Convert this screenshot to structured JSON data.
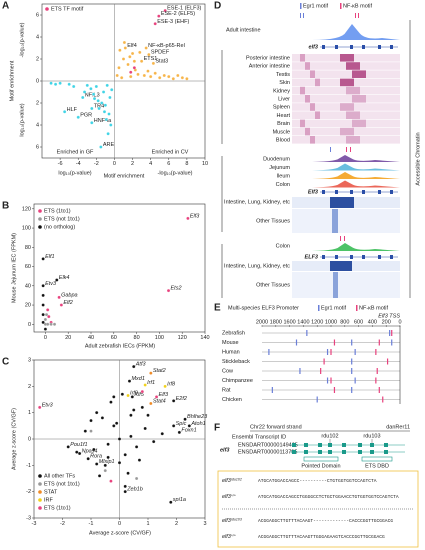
{
  "panel_a": {
    "letter": "A",
    "type": "scatter",
    "legend_title": "ETS TF motif",
    "axes_at_zero": true,
    "xlim": [
      -8,
      10
    ],
    "xticks": [
      -6,
      -4,
      -2,
      0,
      2,
      4,
      6,
      8,
      10
    ],
    "ylim": [
      -7,
      7
    ],
    "yticks": [
      {
        "value": -6,
        "label": "6"
      },
      {
        "value": -4,
        "label": "4"
      },
      {
        "value": -2,
        "label": "2"
      },
      0,
      2,
      4,
      6
    ],
    "y_labels": [
      "Motif enrichment",
      "-log₁₀(p-value)",
      "log₁₀(p-value)"
    ],
    "x_labels": [
      "log₁₀(p-value)",
      "Motif enrichment",
      "-log₁₀(p-value)"
    ],
    "side_labels": [
      "Enriched in GF",
      "Enriched in CV"
    ],
    "series": [
      {
        "color": "#f7b54a",
        "x": [
          1.2,
          3.5,
          3.8,
          3.0,
          4.3,
          0.3,
          0.5,
          0.8,
          1,
          1.5,
          1.8,
          2,
          2.3,
          2.6,
          3.3,
          3.7,
          4,
          4.5,
          5,
          5.5,
          6,
          6.5,
          7,
          7.5,
          8,
          0.6,
          1.1,
          1.7,
          2.2,
          2.8
        ],
        "y": [
          3.0,
          3.0,
          2.4,
          1.8,
          1.6,
          0.5,
          1.2,
          0.3,
          2,
          1.5,
          0.4,
          2.5,
          1,
          0.6,
          0.5,
          0.9,
          0.4,
          0.7,
          0.3,
          0.5,
          0.4,
          0.2,
          0.5,
          0.3,
          0.2,
          2.8,
          3.5,
          2.2,
          1.8,
          2.6
        ],
        "labels": [
          "Elf4",
          "NF-κB-p65-Rel",
          "SPDEF",
          "ETS1",
          "Stat3",
          null,
          null,
          null,
          null,
          null,
          null,
          null,
          null,
          null,
          null,
          null,
          null,
          null,
          null,
          null,
          null,
          null,
          null,
          null,
          null,
          null,
          null,
          null,
          null,
          null
        ]
      },
      {
        "color": "#40d4e6",
        "x": [
          -3.5,
          -2.5,
          -5.5,
          -4,
          -2.5,
          -1.5,
          -0.3,
          -0.5,
          -0.8,
          -1,
          -1.2,
          -1.8,
          -2,
          -2.3,
          -2.6,
          -3,
          -3.3,
          -4.5,
          -5,
          -6,
          -6.5,
          -7,
          -0.6,
          -1.1,
          -1.7,
          -2.2,
          -0.4,
          -0.9,
          -1.4,
          -0.7
        ],
        "y": [
          -1.5,
          -2.5,
          -2.8,
          -3.3,
          -3.8,
          -6,
          -0.8,
          -1.5,
          -0.4,
          -2.2,
          -1,
          -1.8,
          -0.5,
          -1.2,
          -0.7,
          -0.4,
          -1,
          -0.5,
          -0.3,
          -0.2,
          -0.3,
          -0.2,
          -3,
          -2.8,
          -2.5,
          -1.6,
          -4,
          -3.5,
          -2,
          -4.8
        ],
        "labels": [
          "NFIL3",
          "TR4",
          "HLF",
          "PGR",
          "HNF4a",
          "ARE",
          null,
          null,
          null,
          null,
          null,
          null,
          null,
          null,
          null,
          null,
          null,
          null,
          null,
          null,
          null,
          null,
          null,
          null,
          null,
          null,
          null,
          null,
          null,
          null
        ]
      },
      {
        "color": "#e8417d",
        "x": [
          5.6,
          4.9,
          4.5,
          2.2,
          1.8
        ],
        "y": [
          6.4,
          5.9,
          5.2,
          1.2,
          0.8
        ],
        "labels": [
          "ESE-1 (ELF3)",
          "ESE-2 (ELF5)",
          "ESE-3 (EHF)",
          null,
          null
        ]
      }
    ]
  },
  "panel_b": {
    "letter": "B",
    "type": "scatter",
    "xlim": [
      -10,
      140
    ],
    "xticks": [
      0,
      20,
      40,
      60,
      80,
      100,
      120,
      140
    ],
    "ylim": [
      -8,
      125
    ],
    "yticks": [
      0,
      20,
      40,
      60,
      80,
      100,
      120
    ],
    "x_label": "Adult zebrafish IECs (FPKM)",
    "y_label": "Mouse Jejunum IEC (FPKM)",
    "series": [
      {
        "name": "ETS (1to1)",
        "color": "#e8417d",
        "x": [
          125,
          108,
          12,
          14,
          2,
          3,
          5
        ],
        "y": [
          110,
          35,
          28,
          20,
          15,
          8,
          2
        ],
        "labels": [
          "Elf3",
          "Ets2",
          "Gabpa",
          "Elf2",
          null,
          null,
          null
        ]
      },
      {
        "name": "ETS (not 1to1)",
        "color": "#999999",
        "x": [
          0,
          2,
          5,
          8,
          0,
          1
        ],
        "y": [
          0,
          0,
          0,
          0,
          5,
          10
        ],
        "labels": [
          null,
          null,
          null,
          null,
          null,
          null
        ]
      },
      {
        "name": "(no ortholog)",
        "color": "#111111",
        "x": [
          -2,
          -2,
          10,
          -2,
          -2,
          -2,
          -2,
          0
        ],
        "y": [
          68,
          40,
          46,
          30,
          20,
          10,
          2,
          -5
        ],
        "labels": [
          "Elf1",
          "Etv3",
          "Elk4",
          null,
          null,
          null,
          null,
          null
        ]
      }
    ]
  },
  "panel_c": {
    "letter": "C",
    "type": "scatter",
    "axes_at_zero": true,
    "xlim": [
      -3,
      3
    ],
    "xticks": [
      -3,
      -2,
      -1,
      0,
      1,
      2,
      3
    ],
    "ylim": [
      -3,
      3
    ],
    "yticks": [
      -3,
      -2,
      -1,
      0,
      1,
      2,
      3
    ],
    "x_label": "Average z-score (CV/GF)",
    "y_label": "Average z-score (CV/GF)",
    "series": [
      {
        "name": "All other TFs",
        "color": "#111111",
        "x": [
          0.5,
          0.35,
          0.45,
          1.9,
          2.3,
          2.45,
          1.9,
          2.1,
          -1.8,
          -1.4,
          -1.1,
          -0.8,
          0.2,
          1.8,
          -1.2,
          -0.9,
          -0.6,
          -0.4,
          -0.2,
          0,
          0.2,
          0.4,
          0.6,
          0.9,
          1.2,
          -0.5,
          0.5,
          -0.3,
          0.3,
          -0.8,
          0.8,
          0,
          -1.5,
          1.5,
          -0.7,
          0.7,
          0.1,
          -0.1,
          0.4,
          -0.4,
          1,
          -1,
          0.2,
          -0.2
        ],
        "y": [
          2.75,
          2.2,
          1.6,
          1.45,
          0.75,
          0.5,
          0.5,
          0.25,
          -0.3,
          -0.55,
          -0.75,
          -0.95,
          -2.0,
          -2.4,
          0.3,
          -0.4,
          0.8,
          -0.2,
          0.5,
          0,
          -0.6,
          0.9,
          -0.3,
          0.4,
          -0.1,
          -1,
          1.1,
          1.4,
          -1.3,
          1.0,
          1.2,
          -0.9,
          -0.5,
          0.2,
          -1.4,
          -0.8,
          1.7,
          0.6,
          0.1,
          -0.7,
          0.9,
          0.7,
          -1.8,
          1.6
        ],
        "labels": [
          "Atf3",
          "Mxd1",
          "Klf5",
          "E2f2",
          "Bhlhe23",
          "Atoh1",
          "Spic",
          "Foxn1",
          "Pou1f1",
          "Npas4",
          "Rora",
          "Mlxip1",
          "Zeb1b",
          "spi1a",
          null,
          null,
          null,
          null,
          null,
          null,
          null,
          null,
          null,
          null,
          null,
          null,
          null,
          null,
          null,
          null,
          null,
          null,
          null,
          null,
          null,
          null,
          null,
          null,
          null,
          null,
          null,
          null,
          null,
          null
        ]
      },
      {
        "name": "ETS (not 1to1)",
        "color": "#999999",
        "x": [
          -0.5,
          0.6,
          -1
        ],
        "y": [
          -1.2,
          -1.5,
          0.3
        ],
        "labels": [
          null,
          null,
          null
        ]
      },
      {
        "name": "STAT",
        "color": "#f08a24",
        "x": [
          1.1,
          1.1
        ],
        "y": [
          2.5,
          1.35
        ],
        "labels": [
          "Stat2",
          "Stat4"
        ]
      },
      {
        "name": "IRF",
        "color": "#f2d21b",
        "x": [
          0.9,
          1.6,
          0.3
        ],
        "y": [
          2.05,
          2.0,
          1.65
        ],
        "labels": [
          "Irf1",
          "Irf8",
          "Irf9"
        ]
      },
      {
        "name": "ETS (1to1)",
        "color": "#e8417d",
        "x": [
          1.3,
          -2.8,
          0.8,
          -0.3
        ],
        "y": [
          1.6,
          1.2,
          1.8,
          -1.6
        ],
        "labels": [
          "Elf3",
          "Etv3",
          null,
          null
        ]
      }
    ]
  },
  "panel_d": {
    "letter": "D",
    "legend": [
      "Egr1 motif",
      "NF-κB motif"
    ],
    "zebrafish_track": "Adult intestine",
    "zebrafish_gene": "elf3",
    "tissues": [
      "Posterior intestine",
      "Anterior intestine",
      "Testis",
      "Skin",
      "Kidney",
      "Liver",
      "Spleen",
      "Heart",
      "Brain",
      "Muscle",
      "Blood"
    ],
    "mouse_tracks": [
      "Duodenum",
      "Jejunum",
      "Ileum",
      "Colon"
    ],
    "mouse_gene": "Elf3",
    "mouse_groups": [
      "Intestine, Lung, Kidney, etc",
      "Other Tissues"
    ],
    "human_track": "Colon",
    "human_gene": "ELF3",
    "human_groups": [
      "Intestine, Lung, Kidney, etc",
      "Other Tissues"
    ],
    "side_label": "Accessible Chromatin"
  },
  "panel_e": {
    "letter": "E",
    "title": "Multi-species ELF3 Promoter",
    "legend": [
      "Egr1 motif",
      "NF-κB motif"
    ],
    "tss_label": "Elf3 TSS",
    "xlim": [
      2000,
      0
    ],
    "xticks": [
      2000,
      1800,
      1600,
      1400,
      1200,
      1000,
      800,
      600,
      400,
      200,
      0
    ],
    "species": [
      {
        "name": "Zebrafish",
        "egr1": [
          1350,
          150
        ],
        "nfkb": [
          120
        ]
      },
      {
        "name": "Mouse",
        "egr1": [
          1500,
          700,
          120
        ],
        "nfkb": [
          950,
          300
        ]
      },
      {
        "name": "Human",
        "egr1": [
          1900,
          1050,
          650
        ],
        "nfkb": [
          1000,
          350
        ]
      },
      {
        "name": "Stickleback",
        "egr1": [
          700
        ],
        "nfkb": [
          1100,
          180
        ]
      },
      {
        "name": "Cow",
        "egr1": [
          1450,
          700
        ],
        "nfkb": [
          1150,
          330
        ]
      },
      {
        "name": "Chimpanzee",
        "egr1": [
          1050,
          650
        ],
        "nfkb": [
          1000,
          350
        ]
      },
      {
        "name": "Rat",
        "egr1": [
          1850,
          700
        ],
        "nfkb": [
          950,
          300
        ]
      },
      {
        "name": "Chicken",
        "egr1": [
          1200
        ],
        "nfkb": [
          250
        ]
      }
    ]
  },
  "panel_f": {
    "letter": "F",
    "strand": "Chr22 forward strand",
    "assembly": "danRer11",
    "transcript_header": "Ensembl Transcript ID",
    "gene": "elf3",
    "transcripts": [
      "ENSDART00000149465",
      "ENSDART00000113795"
    ],
    "alleles": [
      "rdu102",
      "rdu103"
    ],
    "domains": [
      "Pointed Domain",
      "ETS DBD"
    ],
    "sequences": [
      {
        "gene": "elf3",
        "allele": "rdu102",
        "seq": "ATGCATGGACCAGCC----------CTGTGGTGGTCCAGTCTA"
      },
      {
        "gene": "elf3",
        "allele": "+/+",
        "seq": "ATGCATGGACCAGCCTGGGGCCTCTGCTGGAACCTGTGGTGGTCCAGTCTA"
      },
      {
        "gene": "elf3",
        "allele": "rdu103",
        "seq": "ACGGAGGCTTGTTTACAAGT-------------CACCCGGTTGCGGACG"
      },
      {
        "gene": "elf3",
        "allele": "+/+",
        "seq": "ACGGAGGCTTGTTTACAAGTTGGGAGAAGTCACCCGGTTGCGGACG"
      }
    ]
  }
}
